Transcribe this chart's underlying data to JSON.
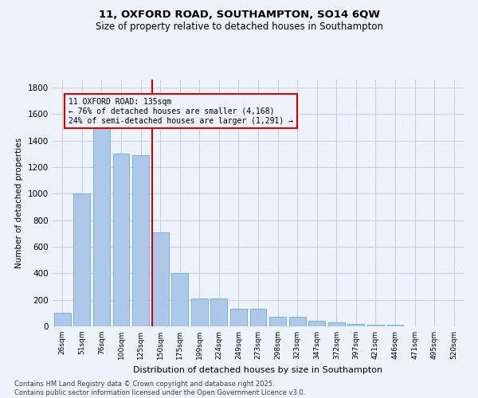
{
  "title_line1": "11, OXFORD ROAD, SOUTHAMPTON, SO14 6QW",
  "title_line2": "Size of property relative to detached houses in Southampton",
  "xlabel": "Distribution of detached houses by size in Southampton",
  "ylabel": "Number of detached properties",
  "categories": [
    "26sqm",
    "51sqm",
    "76sqm",
    "100sqm",
    "125sqm",
    "150sqm",
    "175sqm",
    "199sqm",
    "224sqm",
    "249sqm",
    "273sqm",
    "298sqm",
    "323sqm",
    "347sqm",
    "372sqm",
    "397sqm",
    "421sqm",
    "446sqm",
    "471sqm",
    "495sqm",
    "520sqm"
  ],
  "values": [
    100,
    1000,
    1500,
    1300,
    1290,
    710,
    400,
    210,
    210,
    130,
    130,
    70,
    70,
    40,
    30,
    20,
    15,
    15,
    0,
    0,
    0
  ],
  "bar_color": "#adc8e8",
  "bar_edge_color": "#6aaad4",
  "vline_x": 4.6,
  "vline_color": "#cc0000",
  "annotation_text": "11 OXFORD ROAD: 135sqm\n← 76% of detached houses are smaller (4,168)\n24% of semi-detached houses are larger (1,291) →",
  "annotation_box_color": "#cc0000",
  "ylim": [
    0,
    1860
  ],
  "yticks": [
    0,
    200,
    400,
    600,
    800,
    1000,
    1200,
    1400,
    1600,
    1800
  ],
  "background_color": "#eef2fb",
  "grid_color": "#c8d0e0",
  "footnote": "Contains HM Land Registry data © Crown copyright and database right 2025.\nContains public sector information licensed under the Open Government Licence v3.0."
}
